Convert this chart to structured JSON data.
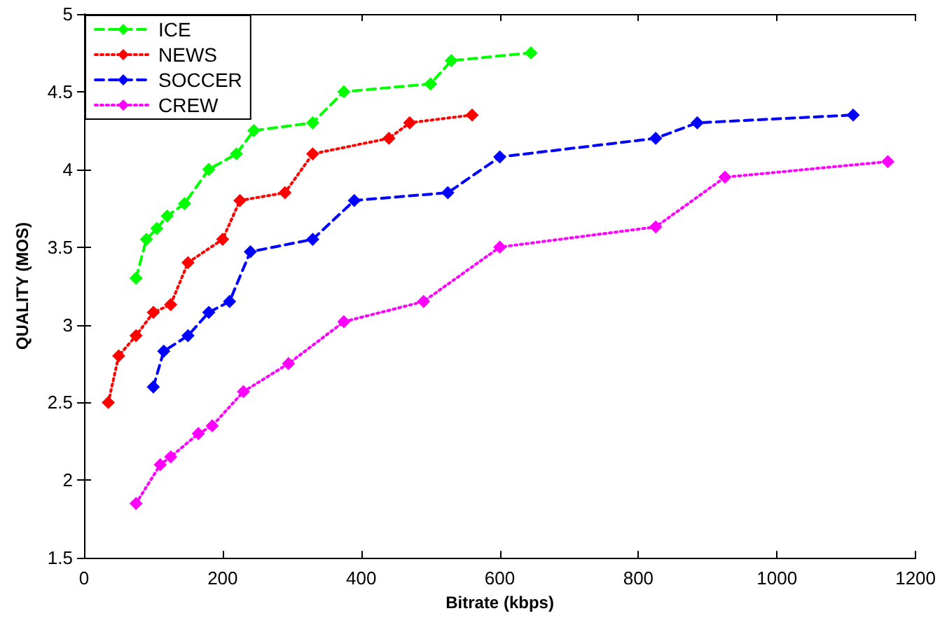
{
  "chart_data": {
    "type": "line",
    "xlabel": "Bitrate (kbps)",
    "ylabel": "QUALITY (MOS)",
    "xlim": [
      0,
      1200
    ],
    "xticks": [
      0,
      200,
      400,
      600,
      800,
      1000,
      1200
    ],
    "ylim": [
      1.5,
      5
    ],
    "yticks": [
      1.5,
      2,
      2.5,
      3,
      3.5,
      4,
      4.5,
      5
    ],
    "grid": false,
    "legend": "top left",
    "marker": "diamond",
    "series": [
      {
        "name": "ICE",
        "color": "#00ff00",
        "line_style": "dashed",
        "x": [
          75,
          90,
          105,
          120,
          145,
          180,
          220,
          245,
          330,
          375,
          500,
          530,
          645
        ],
        "values": [
          3.3,
          3.55,
          3.62,
          3.7,
          3.78,
          4.0,
          4.1,
          4.25,
          4.3,
          4.5,
          4.55,
          4.7,
          4.75
        ]
      },
      {
        "name": "NEWS",
        "color": "#ff0000",
        "line_style": "dotted",
        "x": [
          35,
          50,
          75,
          100,
          125,
          150,
          200,
          225,
          290,
          330,
          440,
          470,
          560
        ],
        "values": [
          2.5,
          2.8,
          2.93,
          3.08,
          3.13,
          3.4,
          3.55,
          3.8,
          3.85,
          4.1,
          4.2,
          4.3,
          4.35
        ]
      },
      {
        "name": "SOCCER",
        "color": "#0000ff",
        "line_style": "dashed",
        "x": [
          100,
          115,
          150,
          180,
          210,
          240,
          330,
          390,
          525,
          600,
          825,
          885,
          1110
        ],
        "values": [
          2.6,
          2.83,
          2.93,
          3.08,
          3.15,
          3.47,
          3.55,
          3.8,
          3.85,
          4.08,
          4.2,
          4.3,
          4.35
        ]
      },
      {
        "name": "CREW",
        "color": "#ff00ff",
        "line_style": "dotted",
        "x": [
          75,
          110,
          125,
          165,
          185,
          230,
          295,
          375,
          490,
          600,
          825,
          925,
          1160
        ],
        "values": [
          1.85,
          2.1,
          2.15,
          2.3,
          2.35,
          2.57,
          2.75,
          3.02,
          3.15,
          3.5,
          3.63,
          3.95,
          4.05
        ]
      }
    ]
  }
}
